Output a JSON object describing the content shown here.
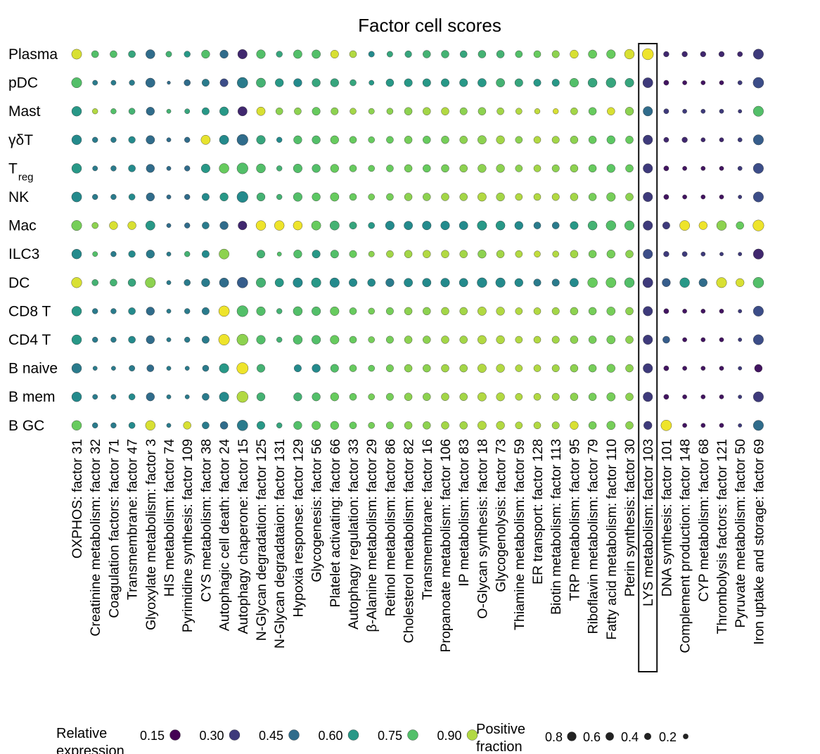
{
  "chart_data": {
    "type": "dot",
    "title": "Factor cell scores",
    "rows": [
      "Plasma",
      "pDC",
      "Mast",
      "γδT",
      "T|reg",
      "NK",
      "Mac",
      "ILC3",
      "DC",
      "CD8 T",
      "CD4 T",
      "B naive",
      "B mem",
      "B GC"
    ],
    "columns": [
      "OXPHOS: factor 31",
      "Creatinine metabolism: factor 32",
      "Coagulation factors: factor 71",
      "Transmembrane: factor 47",
      "Glyoxylate metabolism: factor 3",
      "HIS metabolism: factor 74",
      "Pyrimidine synthesis: factor 109",
      "CYS metabolism: factor 38",
      "Autophagic cell death: factor 24",
      "Autophagy chaperone: factor 15",
      "N-Glycan degradation: factor 125",
      "N-Glycan degradataion: factor 131",
      "Hypoxia response: factor 129",
      "Glycogenesis: factor 56",
      "Platelet activating: factor 66",
      "Autophagy regulation: factor 33",
      "β-Alanine metabolism: factor 29",
      "Retinol metabolism: factor 86",
      "Cholesterol metabolism: factor 82",
      "Transmembrane: factor 16",
      "Propanoate metabolism: factor 106",
      "IP metabolism: factor 83",
      "O-Glycan synthesis: factor 18",
      "Glycogenolysis: factor 73",
      "Thiamine metabolism: factor 59",
      "ER transport: factor 128",
      "Biotin metabolism: factor 113",
      "TRP metabolism: factor 95",
      "Riboflavin metabolism: factor 79",
      "Fatty acid metabolism: factor 110",
      "Pterin synthesis: factor 30",
      "LYS metabolism: factor 103",
      "DNA synthesis: factor 101",
      "Complement production: factor 148",
      "CYP metabolism: factor 68",
      "Thrombolysis factors: factor 121",
      "Pyruvate metabolism: factor  50",
      "Iron uptake and storage: factor 69"
    ],
    "highlighted_column": "LYS metabolism: factor 103",
    "expression": [
      [
        0.95,
        0.75,
        0.75,
        0.65,
        0.45,
        0.7,
        0.6,
        0.75,
        0.45,
        0.25,
        0.75,
        0.65,
        0.75,
        0.75,
        0.95,
        0.9,
        0.55,
        0.65,
        0.65,
        0.7,
        0.7,
        0.65,
        0.7,
        0.7,
        0.75,
        0.8,
        0.85,
        0.95,
        0.8,
        0.8,
        0.95,
        0.98,
        0.25,
        0.25,
        0.25,
        0.25,
        0.25,
        0.3
      ],
      [
        0.75,
        0.5,
        0.5,
        0.5,
        0.45,
        0.45,
        0.45,
        0.5,
        0.35,
        0.5,
        0.7,
        0.6,
        0.55,
        0.65,
        0.65,
        0.65,
        0.6,
        0.6,
        0.6,
        0.6,
        0.6,
        0.6,
        0.6,
        0.7,
        0.65,
        0.6,
        0.6,
        0.75,
        0.65,
        0.65,
        0.65,
        0.3,
        0.2,
        0.2,
        0.2,
        0.2,
        0.3,
        0.35
      ],
      [
        0.6,
        0.9,
        0.75,
        0.7,
        0.45,
        0.7,
        0.65,
        0.6,
        0.6,
        0.25,
        0.95,
        0.85,
        0.85,
        0.8,
        0.85,
        0.88,
        0.85,
        0.85,
        0.85,
        0.88,
        0.9,
        0.85,
        0.85,
        0.88,
        0.9,
        0.92,
        0.95,
        0.88,
        0.8,
        0.95,
        0.85,
        0.45,
        0.3,
        0.3,
        0.3,
        0.3,
        0.3,
        0.75
      ],
      [
        0.55,
        0.5,
        0.5,
        0.55,
        0.45,
        0.45,
        0.45,
        0.97,
        0.55,
        0.45,
        0.65,
        0.55,
        0.75,
        0.75,
        0.8,
        0.8,
        0.8,
        0.8,
        0.82,
        0.8,
        0.82,
        0.85,
        0.85,
        0.88,
        0.85,
        0.9,
        0.88,
        0.85,
        0.8,
        0.78,
        0.8,
        0.3,
        0.25,
        0.25,
        0.25,
        0.25,
        0.3,
        0.4
      ],
      [
        0.6,
        0.5,
        0.5,
        0.55,
        0.45,
        0.45,
        0.45,
        0.6,
        0.8,
        0.75,
        0.75,
        0.7,
        0.75,
        0.75,
        0.8,
        0.8,
        0.8,
        0.8,
        0.82,
        0.8,
        0.82,
        0.85,
        0.85,
        0.85,
        0.85,
        0.88,
        0.85,
        0.85,
        0.8,
        0.78,
        0.8,
        0.3,
        0.2,
        0.2,
        0.2,
        0.2,
        0.3,
        0.35
      ],
      [
        0.55,
        0.5,
        0.5,
        0.55,
        0.45,
        0.45,
        0.45,
        0.55,
        0.6,
        0.55,
        0.7,
        0.7,
        0.75,
        0.78,
        0.8,
        0.8,
        0.82,
        0.82,
        0.85,
        0.85,
        0.88,
        0.88,
        0.9,
        0.88,
        0.9,
        0.9,
        0.9,
        0.88,
        0.82,
        0.82,
        0.85,
        0.3,
        0.2,
        0.2,
        0.2,
        0.2,
        0.3,
        0.35
      ],
      [
        0.82,
        0.85,
        0.95,
        0.95,
        0.6,
        0.45,
        0.45,
        0.5,
        0.45,
        0.25,
        0.98,
        0.98,
        0.98,
        0.8,
        0.7,
        0.65,
        0.6,
        0.55,
        0.55,
        0.55,
        0.55,
        0.55,
        0.6,
        0.6,
        0.55,
        0.5,
        0.5,
        0.6,
        0.7,
        0.75,
        0.75,
        0.3,
        0.3,
        0.98,
        0.98,
        0.85,
        0.8,
        0.98
      ],
      [
        0.55,
        0.75,
        0.5,
        0.55,
        0.5,
        0.5,
        0.7,
        0.55,
        0.85,
        0.55,
        0.7,
        0.75,
        0.75,
        0.6,
        0.75,
        0.8,
        0.85,
        0.88,
        0.88,
        0.9,
        0.9,
        0.88,
        0.85,
        0.88,
        0.9,
        0.92,
        0.9,
        0.88,
        0.82,
        0.82,
        0.85,
        0.35,
        0.3,
        0.3,
        0.3,
        0.3,
        0.3,
        0.25
      ],
      [
        0.95,
        0.7,
        0.7,
        0.65,
        0.85,
        0.5,
        0.5,
        0.5,
        0.45,
        0.4,
        0.7,
        0.6,
        0.55,
        0.6,
        0.55,
        0.55,
        0.55,
        0.5,
        0.55,
        0.55,
        0.55,
        0.55,
        0.55,
        0.55,
        0.55,
        0.5,
        0.5,
        0.55,
        0.8,
        0.8,
        0.75,
        0.3,
        0.4,
        0.6,
        0.45,
        0.95,
        0.95,
        0.75
      ],
      [
        0.6,
        0.5,
        0.5,
        0.55,
        0.45,
        0.5,
        0.5,
        0.5,
        0.98,
        0.75,
        0.75,
        0.7,
        0.75,
        0.75,
        0.8,
        0.8,
        0.82,
        0.82,
        0.85,
        0.85,
        0.88,
        0.88,
        0.9,
        0.9,
        0.9,
        0.9,
        0.88,
        0.85,
        0.82,
        0.82,
        0.85,
        0.3,
        0.2,
        0.2,
        0.2,
        0.2,
        0.3,
        0.35
      ],
      [
        0.6,
        0.5,
        0.5,
        0.55,
        0.45,
        0.5,
        0.5,
        0.5,
        0.98,
        0.85,
        0.75,
        0.7,
        0.75,
        0.75,
        0.8,
        0.8,
        0.82,
        0.82,
        0.85,
        0.85,
        0.88,
        0.88,
        0.9,
        0.9,
        0.9,
        0.9,
        0.88,
        0.85,
        0.82,
        0.82,
        0.85,
        0.3,
        0.4,
        0.2,
        0.2,
        0.2,
        0.3,
        0.35
      ],
      [
        0.5,
        0.5,
        0.5,
        0.5,
        0.45,
        0.5,
        0.5,
        0.5,
        0.6,
        0.98,
        0.7,
        0.7,
        0.55,
        0.55,
        0.75,
        0.8,
        0.8,
        0.82,
        0.85,
        0.85,
        0.88,
        0.88,
        0.9,
        0.9,
        0.9,
        0.9,
        0.88,
        0.85,
        0.82,
        0.82,
        0.85,
        0.3,
        0.2,
        0.2,
        0.2,
        0.2,
        0.3,
        0.2
      ],
      [
        0.55,
        0.5,
        0.5,
        0.55,
        0.45,
        0.5,
        0.5,
        0.5,
        0.55,
        0.9,
        0.7,
        0.7,
        0.7,
        0.75,
        0.8,
        0.8,
        0.82,
        0.82,
        0.85,
        0.85,
        0.88,
        0.88,
        0.9,
        0.9,
        0.9,
        0.9,
        0.88,
        0.85,
        0.82,
        0.82,
        0.85,
        0.3,
        0.2,
        0.2,
        0.2,
        0.2,
        0.3,
        0.3
      ],
      [
        0.8,
        0.5,
        0.5,
        0.55,
        0.95,
        0.5,
        0.95,
        0.5,
        0.45,
        0.5,
        0.6,
        0.65,
        0.75,
        0.8,
        0.8,
        0.8,
        0.82,
        0.82,
        0.85,
        0.85,
        0.88,
        0.88,
        0.9,
        0.9,
        0.9,
        0.9,
        0.88,
        0.95,
        0.82,
        0.82,
        0.85,
        0.3,
        0.98,
        0.2,
        0.2,
        0.2,
        0.3,
        0.45
      ]
    ],
    "positive_fraction": [
      [
        0.48,
        0.2,
        0.2,
        0.2,
        0.38,
        0.12,
        0.14,
        0.3,
        0.3,
        0.42,
        0.35,
        0.14,
        0.33,
        0.33,
        0.28,
        0.2,
        0.12,
        0.12,
        0.18,
        0.25,
        0.25,
        0.2,
        0.25,
        0.25,
        0.2,
        0.2,
        0.22,
        0.3,
        0.32,
        0.35,
        0.45,
        0.62,
        0.1,
        0.1,
        0.1,
        0.1,
        0.08,
        0.5
      ],
      [
        0.5,
        0.08,
        0.08,
        0.1,
        0.4,
        0.02,
        0.15,
        0.22,
        0.28,
        0.55,
        0.4,
        0.3,
        0.3,
        0.3,
        0.3,
        0.15,
        0.08,
        0.25,
        0.28,
        0.28,
        0.28,
        0.28,
        0.32,
        0.33,
        0.28,
        0.22,
        0.22,
        0.35,
        0.38,
        0.45,
        0.35,
        0.48,
        0.08,
        0.05,
        0.05,
        0.05,
        0.05,
        0.55
      ],
      [
        0.45,
        0.1,
        0.1,
        0.15,
        0.3,
        0.05,
        0.08,
        0.22,
        0.35,
        0.4,
        0.33,
        0.2,
        0.2,
        0.28,
        0.22,
        0.15,
        0.12,
        0.15,
        0.25,
        0.25,
        0.25,
        0.22,
        0.25,
        0.2,
        0.15,
        0.1,
        0.1,
        0.2,
        0.25,
        0.25,
        0.3,
        0.42,
        0.08,
        0.05,
        0.05,
        0.05,
        0.03,
        0.5
      ],
      [
        0.45,
        0.1,
        0.1,
        0.18,
        0.33,
        0.05,
        0.1,
        0.4,
        0.4,
        0.6,
        0.35,
        0.1,
        0.3,
        0.3,
        0.3,
        0.2,
        0.15,
        0.2,
        0.25,
        0.25,
        0.25,
        0.25,
        0.33,
        0.3,
        0.2,
        0.2,
        0.22,
        0.25,
        0.25,
        0.3,
        0.25,
        0.42,
        0.08,
        0.1,
        0.05,
        0.05,
        0.05,
        0.5
      ],
      [
        0.45,
        0.08,
        0.1,
        0.2,
        0.3,
        0.05,
        0.1,
        0.35,
        0.45,
        0.6,
        0.38,
        0.1,
        0.35,
        0.3,
        0.3,
        0.2,
        0.15,
        0.2,
        0.25,
        0.25,
        0.25,
        0.25,
        0.3,
        0.3,
        0.2,
        0.2,
        0.22,
        0.25,
        0.25,
        0.3,
        0.25,
        0.42,
        0.08,
        0.05,
        0.05,
        0.05,
        0.05,
        0.5
      ],
      [
        0.48,
        0.1,
        0.1,
        0.15,
        0.3,
        0.05,
        0.1,
        0.22,
        0.3,
        0.6,
        0.3,
        0.1,
        0.35,
        0.3,
        0.33,
        0.2,
        0.15,
        0.2,
        0.25,
        0.25,
        0.25,
        0.25,
        0.33,
        0.3,
        0.2,
        0.2,
        0.22,
        0.25,
        0.25,
        0.35,
        0.25,
        0.42,
        0.08,
        0.05,
        0.05,
        0.05,
        0.03,
        0.5
      ],
      [
        0.5,
        0.15,
        0.3,
        0.3,
        0.4,
        0.05,
        0.1,
        0.2,
        0.3,
        0.35,
        0.45,
        0.45,
        0.38,
        0.4,
        0.4,
        0.22,
        0.15,
        0.35,
        0.33,
        0.35,
        0.35,
        0.33,
        0.42,
        0.38,
        0.3,
        0.2,
        0.2,
        0.28,
        0.38,
        0.45,
        0.42,
        0.42,
        0.22,
        0.48,
        0.3,
        0.45,
        0.25,
        0.6
      ],
      [
        0.45,
        0.08,
        0.1,
        0.18,
        0.3,
        0.05,
        0.1,
        0.22,
        0.48,
        0.0,
        0.28,
        0.05,
        0.3,
        0.28,
        0.28,
        0.22,
        0.12,
        0.2,
        0.25,
        0.25,
        0.25,
        0.25,
        0.3,
        0.25,
        0.2,
        0.15,
        0.15,
        0.25,
        0.25,
        0.3,
        0.25,
        0.42,
        0.1,
        0.08,
        0.05,
        0.03,
        0.03,
        0.5
      ],
      [
        0.52,
        0.15,
        0.2,
        0.25,
        0.5,
        0.05,
        0.15,
        0.3,
        0.4,
        0.55,
        0.42,
        0.33,
        0.42,
        0.42,
        0.42,
        0.28,
        0.25,
        0.3,
        0.33,
        0.33,
        0.35,
        0.33,
        0.45,
        0.42,
        0.3,
        0.22,
        0.22,
        0.33,
        0.45,
        0.48,
        0.45,
        0.48,
        0.3,
        0.45,
        0.3,
        0.5,
        0.3,
        0.55
      ],
      [
        0.45,
        0.1,
        0.1,
        0.2,
        0.3,
        0.05,
        0.1,
        0.22,
        0.55,
        0.6,
        0.35,
        0.1,
        0.38,
        0.35,
        0.35,
        0.2,
        0.15,
        0.22,
        0.25,
        0.25,
        0.25,
        0.25,
        0.33,
        0.3,
        0.2,
        0.2,
        0.22,
        0.25,
        0.25,
        0.32,
        0.25,
        0.42,
        0.08,
        0.05,
        0.05,
        0.05,
        0.03,
        0.5
      ],
      [
        0.45,
        0.1,
        0.1,
        0.2,
        0.3,
        0.05,
        0.1,
        0.22,
        0.58,
        0.62,
        0.35,
        0.1,
        0.38,
        0.35,
        0.35,
        0.2,
        0.15,
        0.22,
        0.25,
        0.25,
        0.25,
        0.25,
        0.33,
        0.3,
        0.2,
        0.2,
        0.22,
        0.25,
        0.25,
        0.32,
        0.25,
        0.42,
        0.2,
        0.05,
        0.05,
        0.05,
        0.03,
        0.5
      ],
      [
        0.45,
        0.05,
        0.05,
        0.12,
        0.2,
        0.05,
        0.05,
        0.15,
        0.42,
        0.65,
        0.28,
        0.0,
        0.22,
        0.3,
        0.28,
        0.2,
        0.15,
        0.22,
        0.25,
        0.25,
        0.25,
        0.25,
        0.33,
        0.3,
        0.2,
        0.2,
        0.22,
        0.25,
        0.25,
        0.3,
        0.25,
        0.42,
        0.08,
        0.05,
        0.05,
        0.05,
        0.03,
        0.25
      ],
      [
        0.45,
        0.08,
        0.08,
        0.15,
        0.3,
        0.05,
        0.05,
        0.2,
        0.42,
        0.62,
        0.3,
        0.0,
        0.3,
        0.3,
        0.3,
        0.2,
        0.15,
        0.22,
        0.25,
        0.25,
        0.25,
        0.25,
        0.33,
        0.3,
        0.2,
        0.2,
        0.22,
        0.25,
        0.25,
        0.32,
        0.25,
        0.42,
        0.08,
        0.05,
        0.05,
        0.05,
        0.03,
        0.5
      ],
      [
        0.45,
        0.1,
        0.1,
        0.15,
        0.45,
        0.05,
        0.25,
        0.2,
        0.25,
        0.55,
        0.28,
        0.1,
        0.3,
        0.33,
        0.3,
        0.2,
        0.15,
        0.22,
        0.25,
        0.25,
        0.25,
        0.25,
        0.33,
        0.3,
        0.2,
        0.2,
        0.22,
        0.3,
        0.25,
        0.32,
        0.25,
        0.3,
        0.55,
        0.05,
        0.05,
        0.05,
        0.03,
        0.5
      ]
    ],
    "colormap": [
      "#440154",
      "#3b528b",
      "#21918c",
      "#5ec962",
      "#fde725"
    ],
    "legend": {
      "color_title": "Relative expression",
      "color_ticks": [
        "0.15",
        "0.30",
        "0.45",
        "0.60",
        "0.75",
        "0.90"
      ],
      "color_values": [
        0.15,
        0.3,
        0.45,
        0.6,
        0.75,
        0.9
      ],
      "size_title": "Positive fraction",
      "size_ticks": [
        "0.8",
        "0.6",
        "0.4",
        "0.2"
      ],
      "size_values": [
        0.8,
        0.6,
        0.4,
        0.2
      ]
    }
  }
}
